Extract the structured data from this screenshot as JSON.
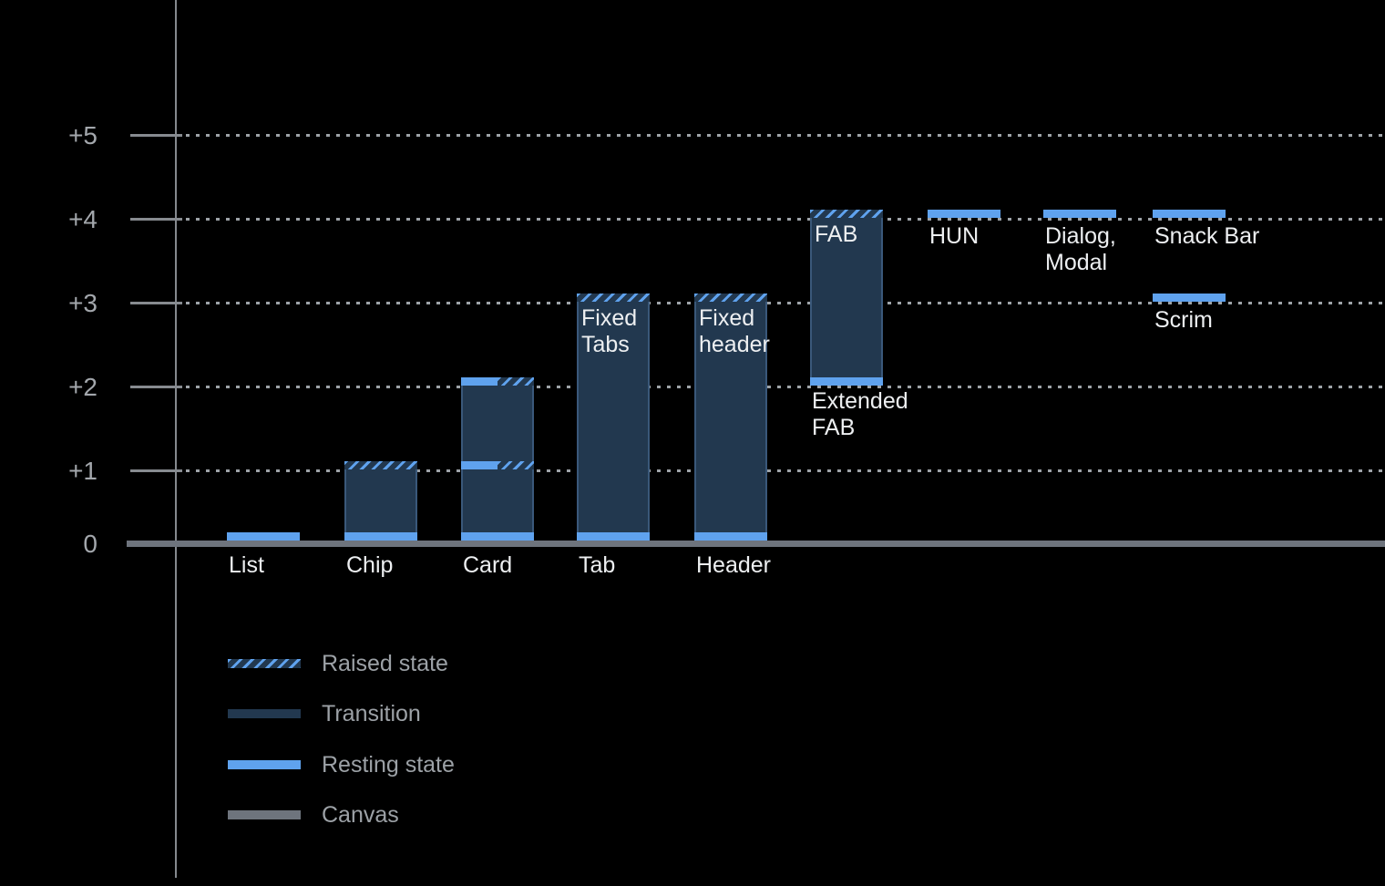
{
  "chart_data": {
    "type": "bar",
    "title": "",
    "xlabel": "",
    "ylabel": "",
    "ylim": [
      0,
      5.5
    ],
    "grid": "dotted horizontal gridlines at +1 through +5",
    "legend_position": "bottom-left",
    "colors": {
      "bg": "#000000",
      "transition": "#22384F",
      "barBorder": "#3A587A",
      "resting": "#5FA2EE",
      "canvas": "#6E747D",
      "gridDash": "#9EA3A8",
      "tick": "#878B90",
      "axis": "#85898E",
      "ylabel": "#A3A7AC",
      "barLabel": "#EDEFF1",
      "legendLabel": "#9CA1A6"
    },
    "yticks": [
      {
        "label": "+5",
        "value": 5
      },
      {
        "label": "+4",
        "value": 4
      },
      {
        "label": "+3",
        "value": 3
      },
      {
        "label": "+2",
        "value": 2
      },
      {
        "label": "+1",
        "value": 1
      },
      {
        "label": "0",
        "value": 0
      }
    ],
    "columns": [
      {
        "slot": 0,
        "name": "List",
        "axis_label": "List",
        "bands": [
          {
            "type": "resting",
            "level": 0
          }
        ]
      },
      {
        "slot": 1,
        "name": "Chip",
        "axis_label": "Chip",
        "bar": {
          "from": 0,
          "to": 1
        },
        "bands": [
          {
            "type": "raised",
            "level": 1
          },
          {
            "type": "resting",
            "level": 0
          }
        ]
      },
      {
        "slot": 2,
        "name": "Card",
        "axis_label": "Card",
        "bar": {
          "from": 0,
          "to": 2
        },
        "bands": [
          {
            "type": "split",
            "level": 2
          },
          {
            "type": "split",
            "level": 1
          },
          {
            "type": "resting",
            "level": 0
          }
        ]
      },
      {
        "slot": 3,
        "name": "Tab",
        "axis_label": "Tab",
        "inner_label": [
          "Fixed",
          "Tabs"
        ],
        "bar": {
          "from": 0,
          "to": 3
        },
        "bands": [
          {
            "type": "raised",
            "level": 3
          },
          {
            "type": "resting",
            "level": 0
          }
        ]
      },
      {
        "slot": 4,
        "name": "Header",
        "axis_label": "Header",
        "inner_label": [
          "Fixed",
          "header"
        ],
        "bar": {
          "from": 0,
          "to": 3
        },
        "bands": [
          {
            "type": "raised",
            "level": 3
          },
          {
            "type": "resting",
            "level": 0
          }
        ]
      },
      {
        "slot": 5,
        "name": "FAB / Extended FAB",
        "inner_label": [
          "FAB"
        ],
        "below_label": [
          "Extended",
          "FAB"
        ],
        "bar": {
          "from": 2,
          "to": 4
        },
        "bands": [
          {
            "type": "raised",
            "level": 4
          },
          {
            "type": "resting",
            "level": 2
          }
        ]
      },
      {
        "slot": 6,
        "name": "HUN",
        "float_label": [
          "HUN"
        ],
        "bands": [
          {
            "type": "resting",
            "level": 4
          }
        ]
      },
      {
        "slot": 7,
        "name": "Dialog, Modal",
        "float_label": [
          "Dialog,",
          "Modal"
        ],
        "bands": [
          {
            "type": "resting",
            "level": 4
          }
        ]
      },
      {
        "slot": 8,
        "name": "Snack Bar",
        "float_label": [
          "Snack Bar"
        ],
        "bands": [
          {
            "type": "resting",
            "level": 4
          }
        ]
      },
      {
        "slot": 8,
        "name": "Scrim",
        "float_label": [
          "Scrim"
        ],
        "bands": [
          {
            "type": "resting",
            "level": 3
          }
        ]
      }
    ],
    "legend": [
      {
        "label": "Raised state",
        "style": "raised"
      },
      {
        "label": "Transition",
        "style": "transition"
      },
      {
        "label": "Resting state",
        "style": "resting"
      },
      {
        "label": "Canvas",
        "style": "canvas"
      }
    ]
  }
}
